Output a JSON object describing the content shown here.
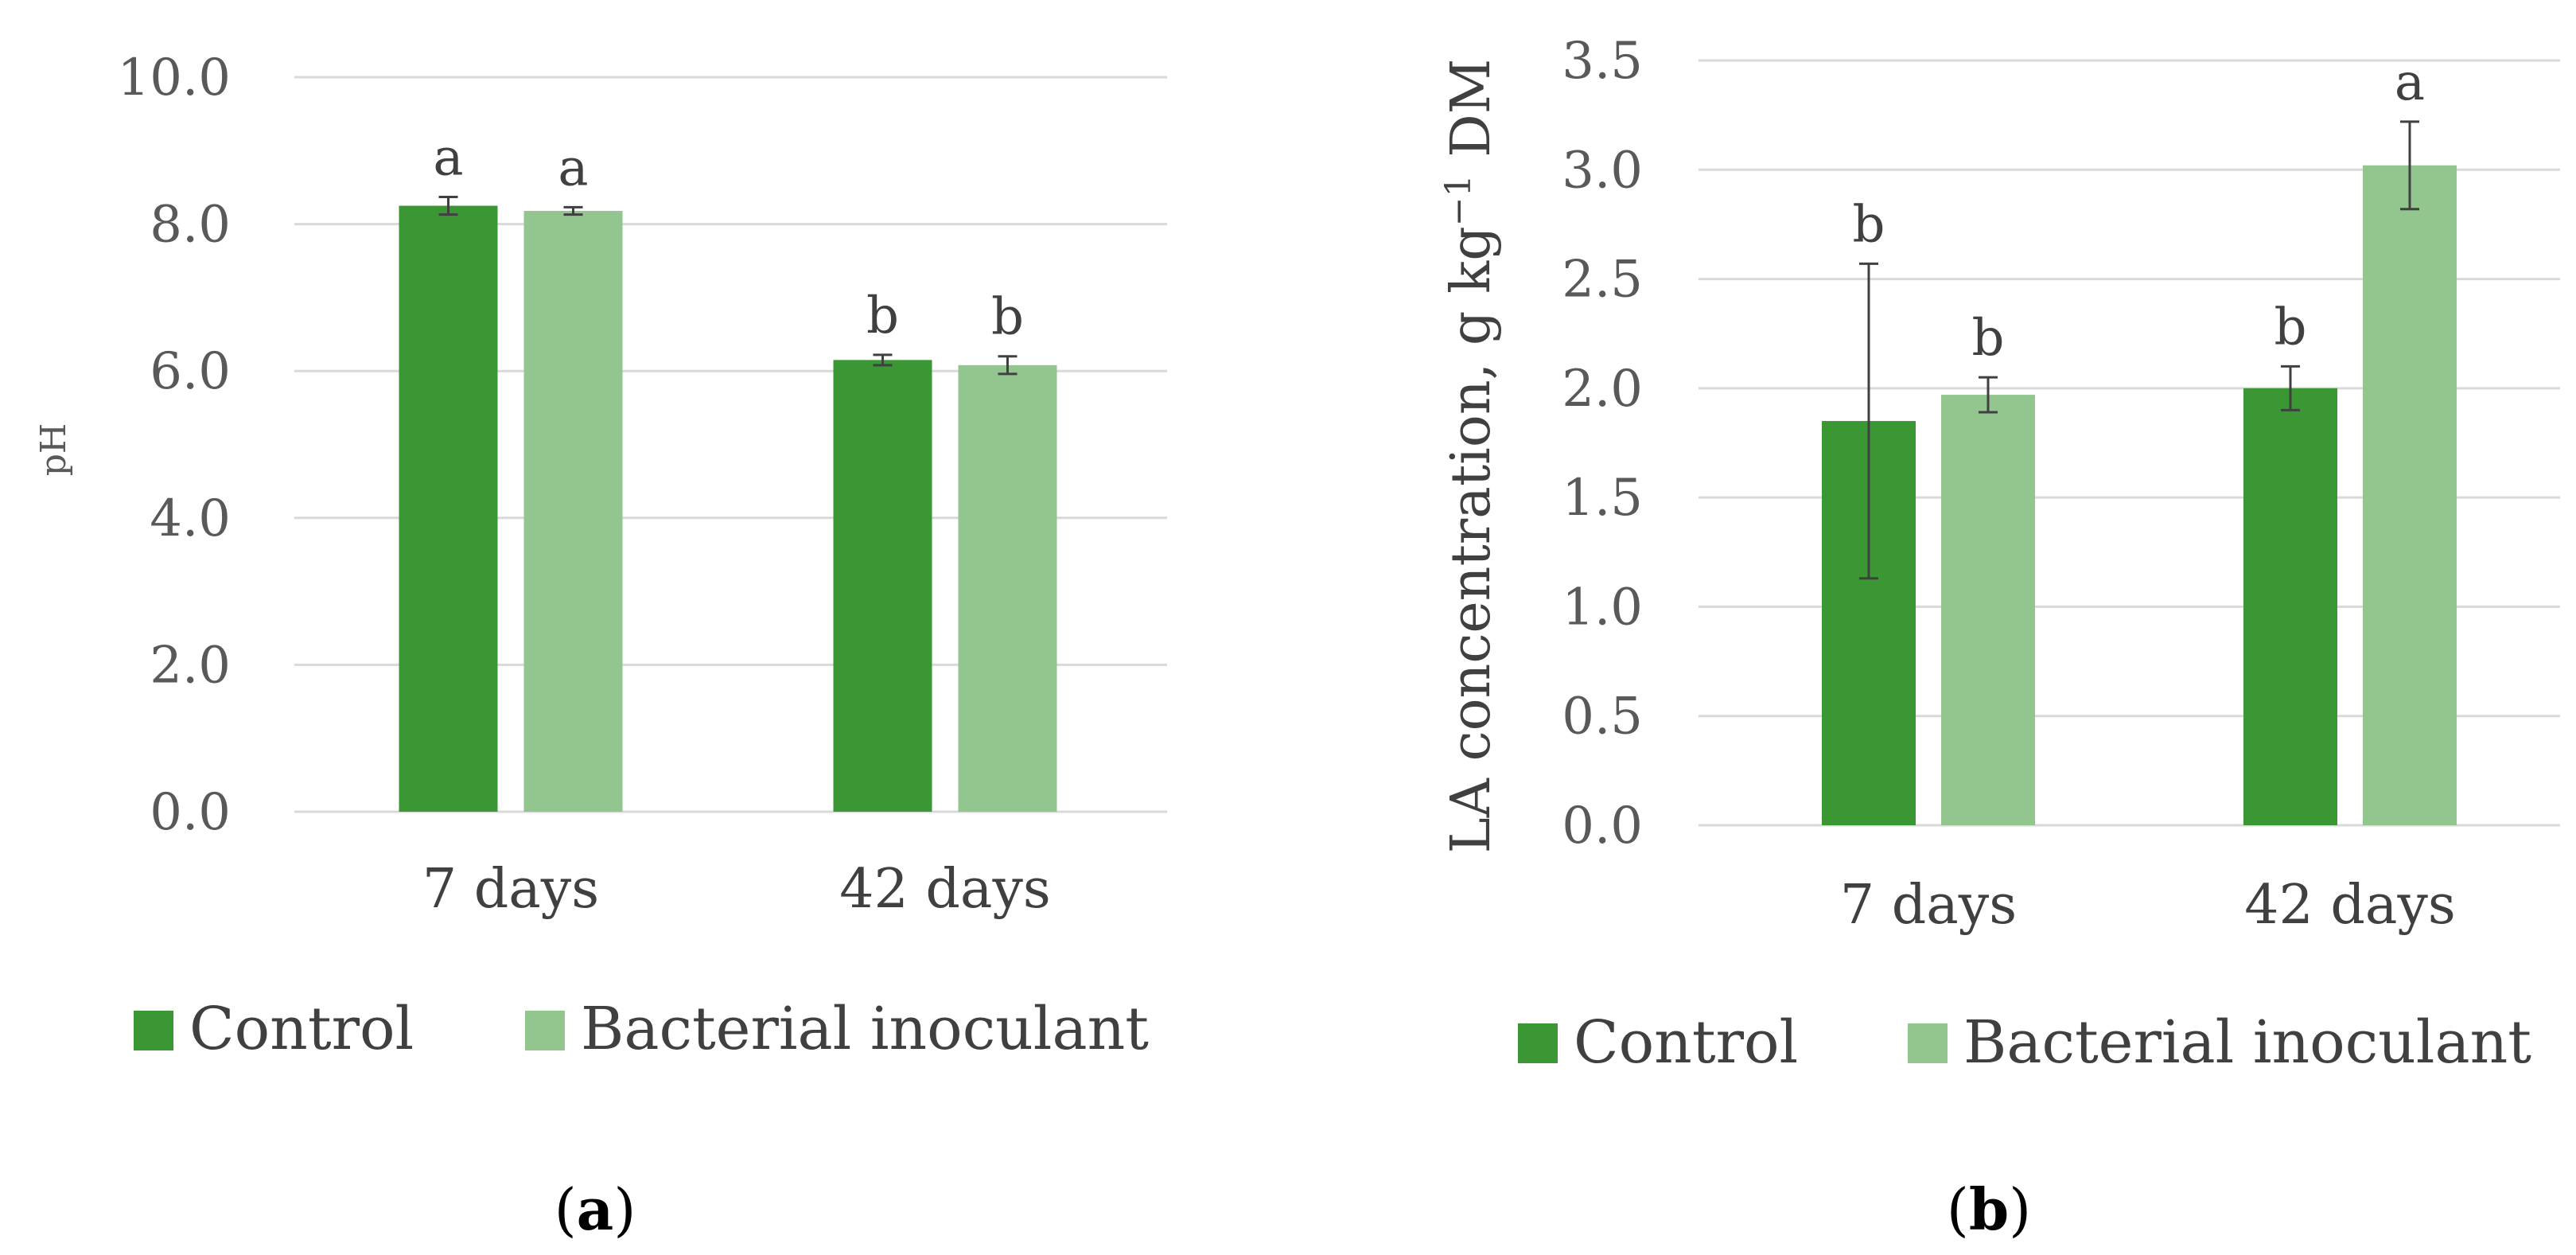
{
  "colors": {
    "control": "#3a9734",
    "inoculant": "#93c58f",
    "grid": "#d9d9d9",
    "error": "#404040"
  },
  "chart_data": [
    {
      "type": "bar",
      "panel_label": "a",
      "ylabel": "pH",
      "ylim": [
        0,
        10
      ],
      "yticks": [
        "0.0",
        "2.0",
        "4.0",
        "6.0",
        "8.0",
        "10.0"
      ],
      "categories": [
        "7 days",
        "42 days"
      ],
      "series": [
        {
          "name": "Control",
          "values": [
            8.25,
            6.15
          ],
          "errors": [
            0.12,
            0.07
          ],
          "letters": [
            "a",
            "b"
          ]
        },
        {
          "name": "Bacterial inoculant",
          "values": [
            8.18,
            6.08
          ],
          "errors": [
            0.05,
            0.12
          ],
          "letters": [
            "a",
            "b"
          ]
        }
      ],
      "legend": [
        "Control",
        "Bacterial inoculant"
      ]
    },
    {
      "type": "bar",
      "panel_label": "b",
      "ylabel": "LA concentration, g kg",
      "ylabel_sup": "−1",
      "ylabel_end": " DM",
      "ylim": [
        0,
        3.5
      ],
      "yticks": [
        "0.0",
        "0.5",
        "1.0",
        "1.5",
        "2.0",
        "2.5",
        "3.0",
        "3.5"
      ],
      "categories": [
        "7 days",
        "42 days"
      ],
      "series": [
        {
          "name": "Control",
          "values": [
            1.85,
            2.0
          ],
          "errors": [
            0.72,
            0.1
          ],
          "letters": [
            "b",
            "b"
          ]
        },
        {
          "name": "Bacterial inoculant",
          "values": [
            1.97,
            3.02
          ],
          "errors": [
            0.08,
            0.2
          ],
          "letters": [
            "b",
            "a"
          ]
        }
      ],
      "legend": [
        "Control",
        "Bacterial inoculant"
      ]
    }
  ]
}
